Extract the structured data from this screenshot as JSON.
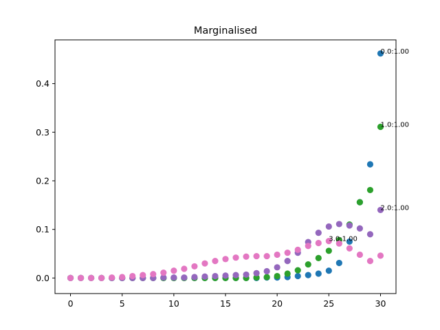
{
  "chart_data": {
    "type": "scatter",
    "title": "Marginalised",
    "xlabel": "",
    "ylabel": "",
    "xlim": [
      -1.5,
      31.5
    ],
    "ylim": [
      -0.032,
      0.49
    ],
    "x_ticks": [
      0,
      5,
      10,
      15,
      20,
      25,
      30
    ],
    "y_ticks": [
      0.0,
      0.1,
      0.2,
      0.3,
      0.4
    ],
    "y_tick_labels": [
      "0.0",
      "0.1",
      "0.2",
      "0.3",
      "0.4"
    ],
    "grid": false,
    "x": [
      0,
      1,
      2,
      3,
      4,
      5,
      6,
      7,
      8,
      9,
      10,
      11,
      12,
      13,
      14,
      15,
      16,
      17,
      18,
      19,
      20,
      21,
      22,
      23,
      24,
      25,
      26,
      27,
      28,
      29,
      30
    ],
    "series": [
      {
        "color": "#1f77b4",
        "values": [
          0,
          0,
          0,
          0,
          0,
          0,
          0,
          0,
          0,
          0,
          0,
          0,
          0,
          0,
          0,
          0,
          0,
          0,
          0,
          0.001,
          0.001,
          0.002,
          0.004,
          0.006,
          0.009,
          0.015,
          0.031,
          0.075,
          0.156,
          0.234,
          0.462
        ],
        "annotation": "0.0:1.00"
      },
      {
        "color": "#2ca02c",
        "values": [
          0,
          0,
          0,
          0,
          0,
          0,
          0,
          0,
          0,
          0,
          0,
          0,
          0,
          0,
          0,
          0,
          0,
          0,
          0.001,
          0.002,
          0.004,
          0.009,
          0.016,
          0.028,
          0.041,
          0.056,
          0.078,
          0.11,
          0.156,
          0.181,
          0.311
        ],
        "annotation": "1.0:1.00"
      },
      {
        "color": "#9467bd",
        "values": [
          0,
          0,
          0,
          0,
          0,
          0,
          0,
          0,
          0,
          0.001,
          0.001,
          0.001,
          0.002,
          0.003,
          0.004,
          0.005,
          0.006,
          0.007,
          0.01,
          0.014,
          0.022,
          0.035,
          0.052,
          0.074,
          0.093,
          0.106,
          0.111,
          0.108,
          0.102,
          0.09,
          0.14
        ],
        "annotation": "2.0:1.00"
      },
      {
        "color": "#e377c2",
        "values": [
          0,
          0,
          0,
          0,
          0.001,
          0.002,
          0.004,
          0.006,
          0.008,
          0.011,
          0.015,
          0.019,
          0.024,
          0.03,
          0.035,
          0.039,
          0.042,
          0.044,
          0.045,
          0.045,
          0.048,
          0.052,
          0.058,
          0.066,
          0.072,
          0.076,
          0.071,
          0.061,
          0.048,
          0.035,
          0.046
        ],
        "annotation": "3.0:1.00",
        "annotation_x": 25,
        "annotation_y": 0.076
      }
    ]
  }
}
